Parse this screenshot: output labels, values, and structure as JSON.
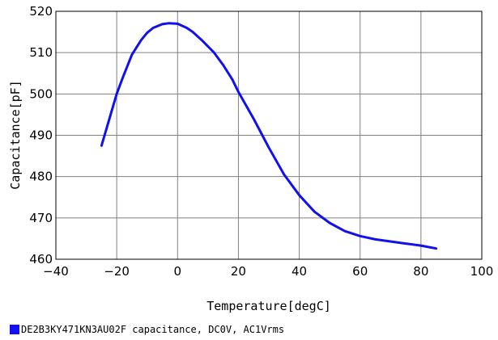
{
  "chart_data": {
    "type": "line",
    "title": "",
    "xlabel": "Temperature[degC]",
    "ylabel": "Capacitance[pF]",
    "xlim": [
      -40,
      100
    ],
    "ylim": [
      460,
      520
    ],
    "x_ticks": [
      -40,
      -20,
      0,
      20,
      40,
      60,
      80,
      100
    ],
    "y_ticks": [
      460,
      470,
      480,
      490,
      500,
      510,
      520
    ],
    "grid": true,
    "legend_position": "bottom-left",
    "series": [
      {
        "name": "DE2B3KY471KN3AU02F capacitance, DC0V, AC1Vrms",
        "color": "#1010f0",
        "x": [
          -25,
          -22,
          -20,
          -18,
          -15,
          -12,
          -10,
          -8,
          -5,
          -3,
          0,
          3,
          5,
          8,
          10,
          12,
          15,
          18,
          20,
          25,
          30,
          35,
          40,
          45,
          50,
          55,
          60,
          65,
          70,
          75,
          80,
          85
        ],
        "y": [
          487.5,
          495,
          500,
          504,
          509.5,
          513,
          514.8,
          516,
          516.9,
          517.1,
          517,
          516,
          515,
          513,
          511.5,
          510,
          507,
          503.5,
          500.5,
          494,
          487,
          480.5,
          475.5,
          471.5,
          468.8,
          466.8,
          465.6,
          464.8,
          464.3,
          463.8,
          463.3,
          462.6
        ]
      }
    ]
  }
}
